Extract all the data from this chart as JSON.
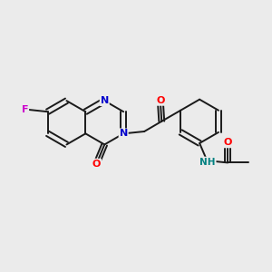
{
  "bg_color": "#ebebeb",
  "bond_color": "#1a1a1a",
  "atom_colors": {
    "F": "#cc00cc",
    "N": "#0000cc",
    "O": "#ff0000",
    "NH": "#008080",
    "C": "#1a1a1a"
  },
  "lw": 1.4,
  "fig_width": 3.0,
  "fig_height": 3.0,
  "dpi": 100
}
